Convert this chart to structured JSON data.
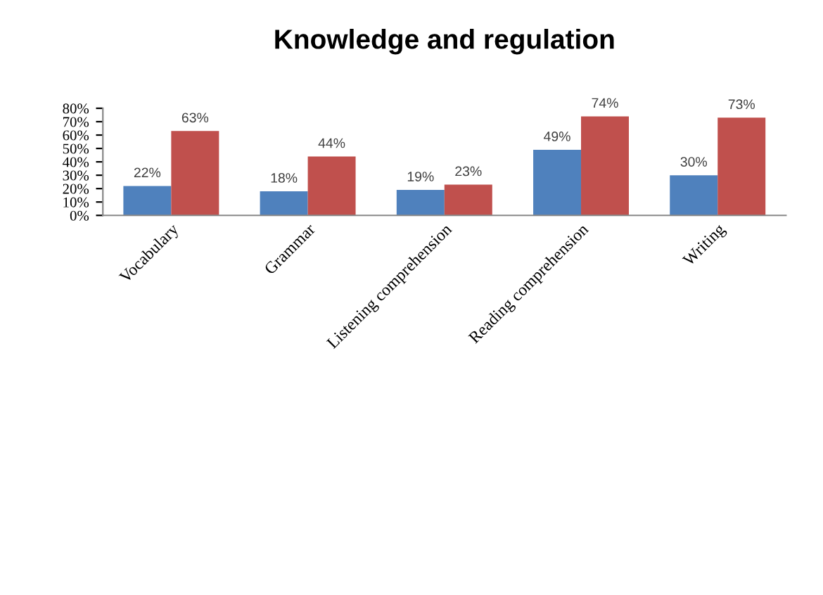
{
  "chart_data": {
    "type": "bar",
    "title": "Knowledge and regulation",
    "categories": [
      "Vocabulary",
      "Grammar",
      "Listening comprehension",
      "Reading comprehension",
      "Writing"
    ],
    "series": [
      {
        "color": "#4f81bd",
        "values": [
          22,
          18,
          19,
          49,
          30
        ],
        "value_labels": [
          "22%",
          "18%",
          "19%",
          "49%",
          "30%"
        ]
      },
      {
        "color": "#c0504d",
        "values": [
          63,
          44,
          23,
          74,
          73
        ],
        "value_labels": [
          "63%",
          "44%",
          "23%",
          "74%",
          "73%"
        ]
      }
    ],
    "ylim": [
      0,
      80
    ],
    "yticks": [
      {
        "value": 0,
        "label": "0%"
      },
      {
        "value": 10,
        "label": "10%"
      },
      {
        "value": 20,
        "label": "20%"
      },
      {
        "value": 30,
        "label": "30%"
      },
      {
        "value": 40,
        "label": "40%"
      },
      {
        "value": 50,
        "label": "50%"
      },
      {
        "value": 60,
        "label": "60%"
      },
      {
        "value": 70,
        "label": "70%"
      },
      {
        "value": 80,
        "label": "80%"
      }
    ],
    "grid": false,
    "legend": false
  }
}
